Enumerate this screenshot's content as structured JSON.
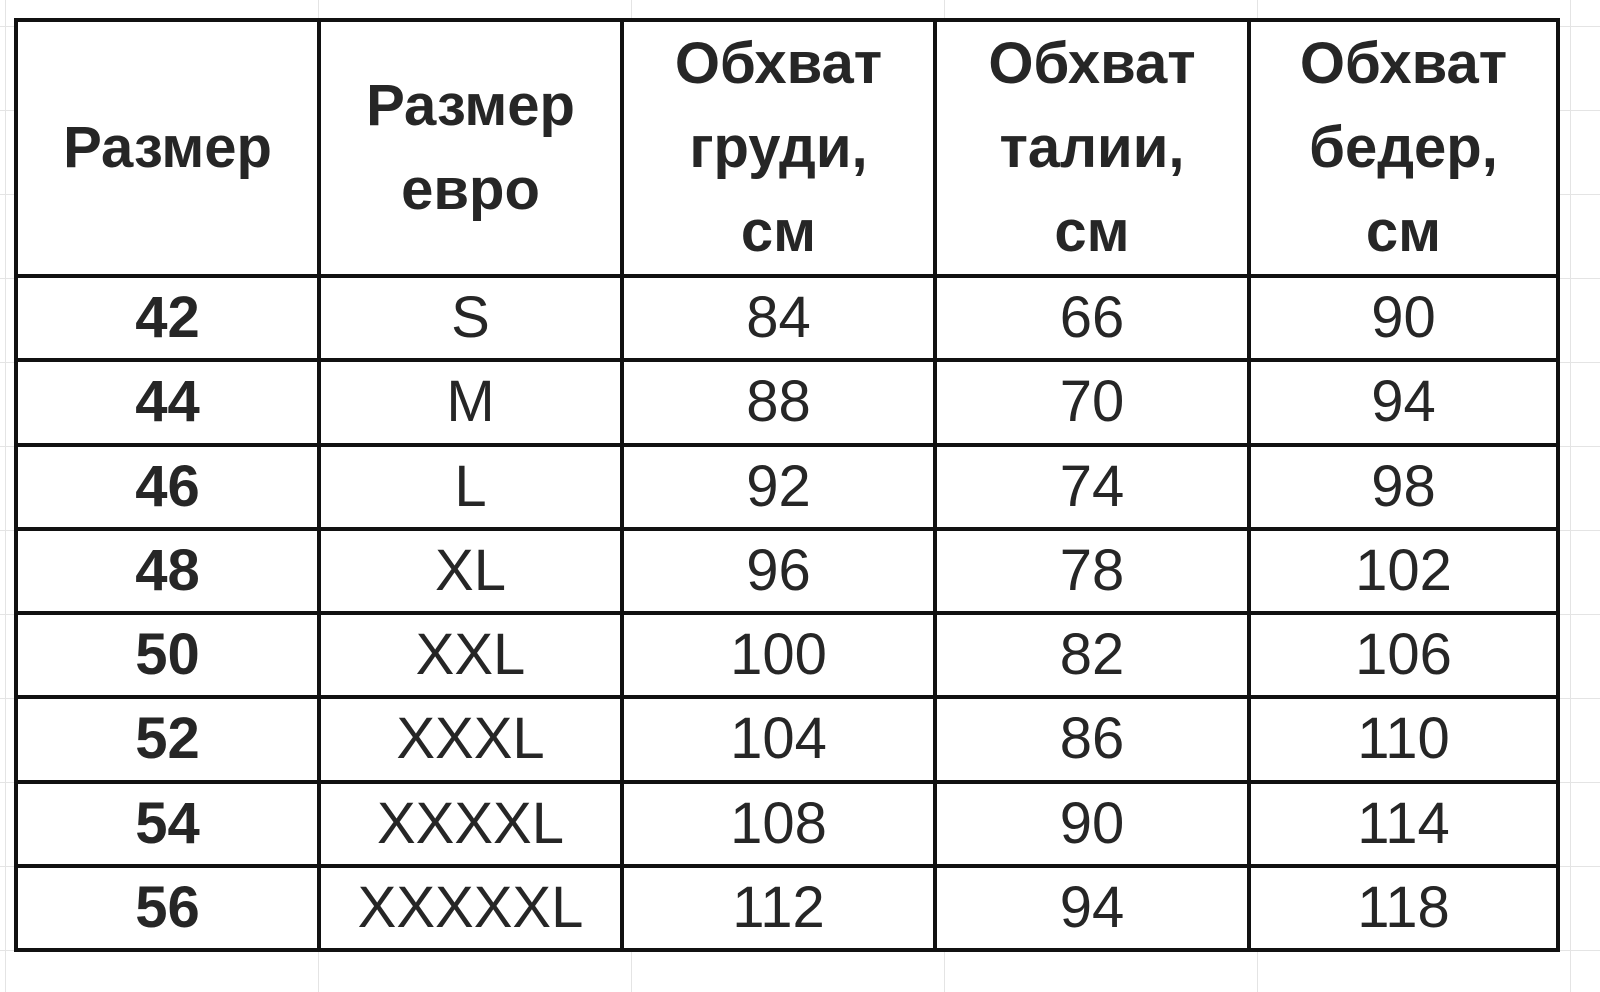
{
  "headers": [
    "Размер",
    "Размер евро",
    "Обхват груди, см",
    "Обхват талии, см",
    "Обхват бедер, см"
  ],
  "rows": [
    [
      "42",
      "S",
      "84",
      "66",
      "90"
    ],
    [
      "44",
      "M",
      "88",
      "70",
      "94"
    ],
    [
      "46",
      "L",
      "92",
      "74",
      "98"
    ],
    [
      "48",
      "XL",
      "96",
      "78",
      "102"
    ],
    [
      "50",
      "XXL",
      "100",
      "82",
      "106"
    ],
    [
      "52",
      "XXXL",
      "104",
      "86",
      "110"
    ],
    [
      "54",
      "XXXXL",
      "108",
      "90",
      "114"
    ],
    [
      "56",
      "XXXXXL",
      "112",
      "94",
      "118"
    ]
  ]
}
